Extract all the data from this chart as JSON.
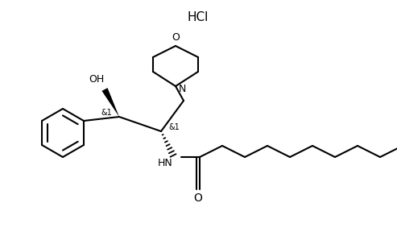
{
  "background_color": "#ffffff",
  "line_color": "#000000",
  "line_width": 1.5,
  "font_size": 9,
  "hcl_label": "HCl",
  "label_and1": "&1",
  "label_and2": "&1",
  "label_hn": "HN",
  "label_oh": "OH",
  "label_n": "N",
  "label_o": "O",
  "label_carbonyl_o": "O",
  "fig_width": 4.93,
  "fig_height": 2.93,
  "dpi": 100
}
